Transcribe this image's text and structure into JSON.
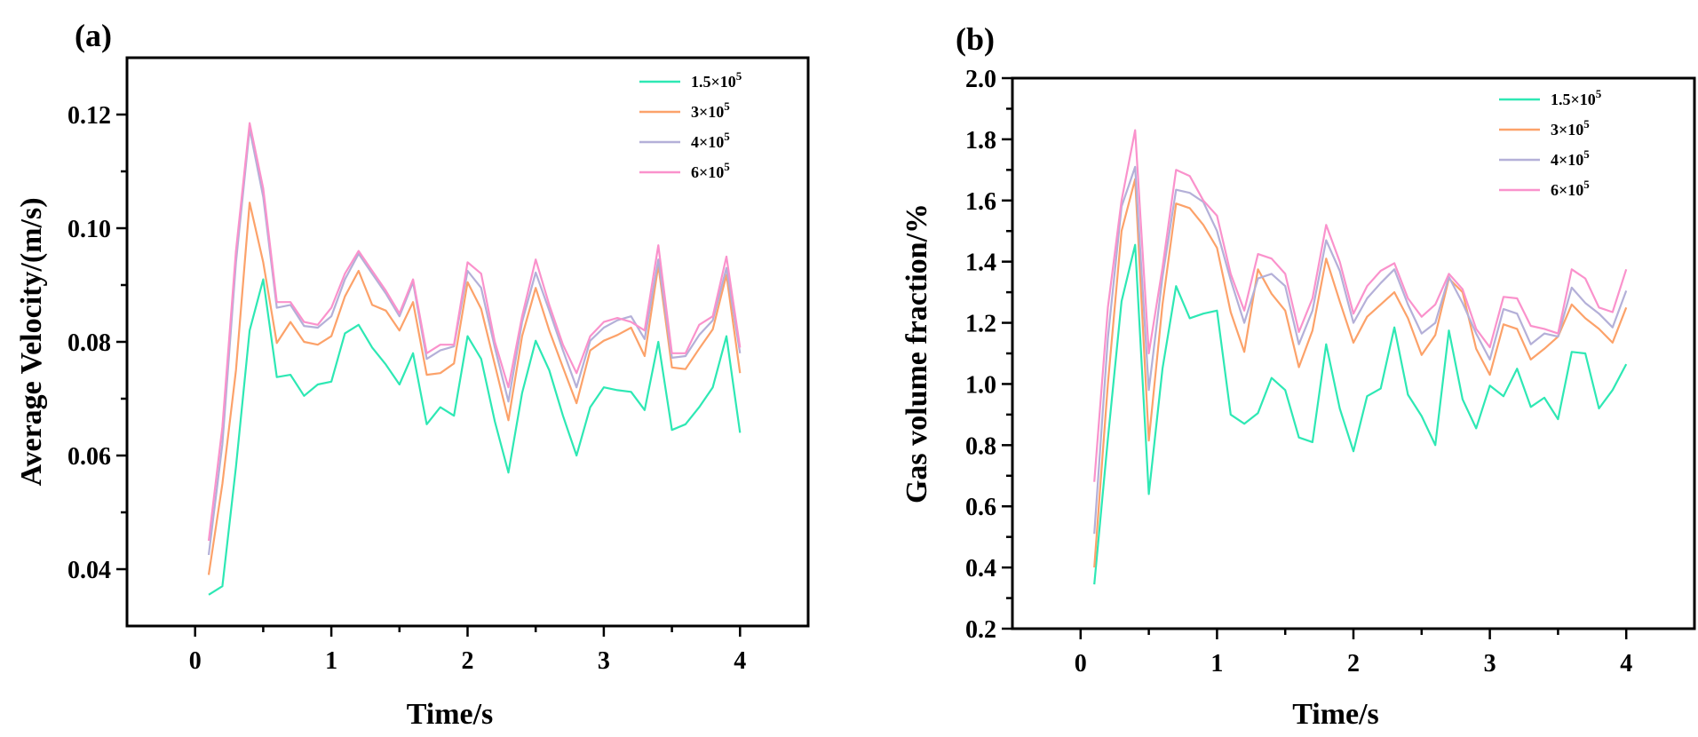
{
  "chart_data": [
    {
      "type": "line",
      "panel_label": "(a)",
      "xlabel": "Time/s",
      "ylabel": "Average Velocity/(m/s)",
      "xlim": [
        -0.5,
        4.5
      ],
      "ylim": [
        0.03,
        0.13
      ],
      "xticks": [
        0,
        1,
        2,
        3,
        4
      ],
      "xtick_labels": [
        "0",
        "1",
        "2",
        "3",
        "4"
      ],
      "yticks": [
        0.04,
        0.06,
        0.08,
        0.1,
        0.12
      ],
      "ytick_labels": [
        "0.04",
        "0.06",
        "0.08",
        "0.10",
        "0.12"
      ],
      "legend_position": "top-right",
      "x": [
        0.1,
        0.2,
        0.3,
        0.4,
        0.5,
        0.6,
        0.7,
        0.8,
        0.9,
        1.0,
        1.1,
        1.2,
        1.3,
        1.4,
        1.5,
        1.6,
        1.7,
        1.8,
        1.9,
        2.0,
        2.1,
        2.2,
        2.3,
        2.4,
        2.5,
        2.6,
        2.7,
        2.8,
        2.9,
        3.0,
        3.1,
        3.2,
        3.3,
        3.4,
        3.5,
        3.6,
        3.7,
        3.8,
        3.9,
        4.0
      ],
      "series": [
        {
          "name": "1.5×10",
          "sup": "5",
          "color": "#2ee8b4",
          "values": [
            0.0355,
            0.037,
            0.058,
            0.082,
            0.091,
            0.0738,
            0.0742,
            0.0705,
            0.0725,
            0.073,
            0.0815,
            0.083,
            0.079,
            0.076,
            0.0725,
            0.078,
            0.0655,
            0.0685,
            0.067,
            0.081,
            0.077,
            0.066,
            0.057,
            0.071,
            0.0802,
            0.075,
            0.067,
            0.06,
            0.0685,
            0.072,
            0.0715,
            0.0712,
            0.068,
            0.08,
            0.0645,
            0.0655,
            0.0685,
            0.072,
            0.081,
            0.064
          ]
        },
        {
          "name": "3×10",
          "sup": "5",
          "color": "#fca26a",
          "values": [
            0.039,
            0.055,
            0.075,
            0.1045,
            0.094,
            0.0798,
            0.0835,
            0.08,
            0.0795,
            0.081,
            0.088,
            0.0925,
            0.0865,
            0.0855,
            0.082,
            0.087,
            0.0742,
            0.0745,
            0.0762,
            0.0905,
            0.0858,
            0.076,
            0.0662,
            0.081,
            0.0895,
            0.082,
            0.0755,
            0.0692,
            0.0785,
            0.0802,
            0.0812,
            0.0825,
            0.0775,
            0.0935,
            0.0755,
            0.0752,
            0.0788,
            0.0822,
            0.0918,
            0.0745
          ]
        },
        {
          "name": "4×10",
          "sup": "5",
          "color": "#b4b0d8",
          "values": [
            0.0425,
            0.062,
            0.094,
            0.1175,
            0.1055,
            0.086,
            0.0865,
            0.0828,
            0.0825,
            0.0845,
            0.091,
            0.0955,
            0.092,
            0.0885,
            0.0845,
            0.0905,
            0.077,
            0.0785,
            0.0792,
            0.0925,
            0.0895,
            0.079,
            0.0695,
            0.0835,
            0.0922,
            0.0855,
            0.0785,
            0.072,
            0.0802,
            0.0825,
            0.0838,
            0.0845,
            0.0805,
            0.0945,
            0.0772,
            0.0775,
            0.0812,
            0.0838,
            0.093,
            0.078
          ]
        },
        {
          "name": "6×10",
          "sup": "5",
          "color": "#fa92cc",
          "values": [
            0.045,
            0.065,
            0.096,
            0.1185,
            0.107,
            0.087,
            0.087,
            0.0835,
            0.083,
            0.086,
            0.092,
            0.096,
            0.0925,
            0.089,
            0.085,
            0.091,
            0.078,
            0.0795,
            0.0795,
            0.094,
            0.092,
            0.08,
            0.072,
            0.0845,
            0.0945,
            0.0865,
            0.0795,
            0.0745,
            0.081,
            0.0835,
            0.0842,
            0.0835,
            0.082,
            0.097,
            0.078,
            0.078,
            0.083,
            0.0845,
            0.095,
            0.079
          ]
        }
      ]
    },
    {
      "type": "line",
      "panel_label": "(b)",
      "xlabel": "Time/s",
      "ylabel": "Gas volume fraction/%",
      "xlim": [
        -0.5,
        4.5
      ],
      "ylim": [
        0.2,
        2.0
      ],
      "xticks": [
        0,
        1,
        2,
        3,
        4
      ],
      "xtick_labels": [
        "0",
        "1",
        "2",
        "3",
        "4"
      ],
      "yticks": [
        0.2,
        0.4,
        0.6,
        0.8,
        1.0,
        1.2,
        1.4,
        1.6,
        1.8,
        2.0
      ],
      "ytick_labels": [
        "0.2",
        "0.4",
        "0.6",
        "0.8",
        "1.0",
        "1.2",
        "1.4",
        "1.6",
        "1.8",
        "2.0"
      ],
      "legend_position": "top-right",
      "x": [
        0.1,
        0.2,
        0.3,
        0.4,
        0.5,
        0.6,
        0.7,
        0.8,
        0.9,
        1.0,
        1.1,
        1.2,
        1.3,
        1.4,
        1.5,
        1.6,
        1.7,
        1.8,
        1.9,
        2.0,
        2.1,
        2.2,
        2.3,
        2.4,
        2.5,
        2.6,
        2.7,
        2.8,
        2.9,
        3.0,
        3.1,
        3.2,
        3.3,
        3.4,
        3.5,
        3.6,
        3.7,
        3.8,
        3.9,
        4.0
      ],
      "series": [
        {
          "name": "1.5×10",
          "sup": "5",
          "color": "#2ee8b4",
          "values": [
            0.345,
            0.82,
            1.27,
            1.455,
            0.64,
            1.05,
            1.32,
            1.215,
            1.23,
            1.24,
            0.9,
            0.87,
            0.905,
            1.02,
            0.98,
            0.825,
            0.81,
            1.13,
            0.92,
            0.78,
            0.96,
            0.985,
            1.185,
            0.965,
            0.895,
            0.8,
            1.175,
            0.95,
            0.855,
            0.995,
            0.96,
            1.05,
            0.925,
            0.955,
            0.885,
            1.105,
            1.1,
            0.92,
            0.98,
            1.065
          ]
        },
        {
          "name": "3×10",
          "sup": "5",
          "color": "#fca26a",
          "values": [
            0.4,
            1.0,
            1.5,
            1.67,
            0.815,
            1.26,
            1.59,
            1.575,
            1.52,
            1.445,
            1.235,
            1.105,
            1.375,
            1.295,
            1.24,
            1.055,
            1.175,
            1.41,
            1.27,
            1.135,
            1.22,
            1.26,
            1.3,
            1.215,
            1.095,
            1.16,
            1.345,
            1.3,
            1.115,
            1.03,
            1.195,
            1.18,
            1.08,
            1.115,
            1.155,
            1.26,
            1.215,
            1.18,
            1.135,
            1.25
          ]
        },
        {
          "name": "4×10",
          "sup": "5",
          "color": "#b4b0d8",
          "values": [
            0.51,
            1.15,
            1.58,
            1.71,
            0.98,
            1.35,
            1.635,
            1.625,
            1.595,
            1.5,
            1.34,
            1.2,
            1.345,
            1.36,
            1.32,
            1.13,
            1.24,
            1.47,
            1.37,
            1.2,
            1.28,
            1.33,
            1.375,
            1.26,
            1.165,
            1.2,
            1.35,
            1.265,
            1.165,
            1.08,
            1.245,
            1.23,
            1.13,
            1.165,
            1.155,
            1.315,
            1.265,
            1.23,
            1.185,
            1.305
          ]
        },
        {
          "name": "6×10",
          "sup": "5",
          "color": "#fa92cc",
          "values": [
            0.68,
            1.25,
            1.6,
            1.83,
            1.1,
            1.38,
            1.7,
            1.68,
            1.6,
            1.55,
            1.36,
            1.24,
            1.425,
            1.41,
            1.36,
            1.17,
            1.28,
            1.52,
            1.4,
            1.23,
            1.32,
            1.37,
            1.395,
            1.28,
            1.22,
            1.26,
            1.36,
            1.31,
            1.18,
            1.12,
            1.285,
            1.28,
            1.19,
            1.18,
            1.165,
            1.375,
            1.345,
            1.25,
            1.235,
            1.375
          ]
        }
      ]
    }
  ]
}
